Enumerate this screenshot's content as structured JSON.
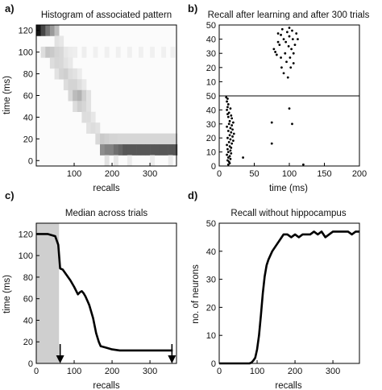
{
  "chart_data": [
    {
      "panel": "a)",
      "type": "heatmap",
      "title": "Histogram of associated pattern",
      "xlabel": "recalls",
      "ylabel": "time (ms)",
      "xlim": [
        0,
        370
      ],
      "ylim": [
        -5,
        125
      ],
      "xticks": [
        100,
        200,
        300
      ],
      "yticks": [
        0,
        20,
        40,
        60,
        80,
        100,
        120
      ],
      "bin_width_x": 12,
      "bin_height_y": 10,
      "cells": [
        [
          0,
          120,
          0.95
        ],
        [
          12,
          120,
          0.75
        ],
        [
          24,
          120,
          0.55
        ],
        [
          36,
          120,
          0.4
        ],
        [
          48,
          120,
          0.25
        ],
        [
          48,
          110,
          0.1
        ],
        [
          60,
          110,
          0.08
        ],
        [
          12,
          100,
          0.12
        ],
        [
          24,
          100,
          0.22
        ],
        [
          36,
          100,
          0.2
        ],
        [
          48,
          100,
          0.16
        ],
        [
          60,
          100,
          0.14
        ],
        [
          72,
          100,
          0.08
        ],
        [
          84,
          100,
          0.06
        ],
        [
          96,
          100,
          0.05
        ],
        [
          120,
          100,
          0.05
        ],
        [
          150,
          100,
          0.04
        ],
        [
          180,
          100,
          0.04
        ],
        [
          210,
          100,
          0.04
        ],
        [
          240,
          100,
          0.04
        ],
        [
          270,
          100,
          0.04
        ],
        [
          300,
          100,
          0.04
        ],
        [
          330,
          100,
          0.04
        ],
        [
          354,
          100,
          0.04
        ],
        [
          36,
          90,
          0.12
        ],
        [
          48,
          90,
          0.15
        ],
        [
          60,
          90,
          0.14
        ],
        [
          72,
          90,
          0.1
        ],
        [
          84,
          90,
          0.07
        ],
        [
          48,
          80,
          0.1
        ],
        [
          60,
          80,
          0.16
        ],
        [
          72,
          80,
          0.18
        ],
        [
          84,
          80,
          0.12
        ],
        [
          96,
          80,
          0.1
        ],
        [
          108,
          80,
          0.06
        ],
        [
          72,
          70,
          0.12
        ],
        [
          84,
          70,
          0.16
        ],
        [
          96,
          70,
          0.16
        ],
        [
          108,
          70,
          0.12
        ],
        [
          120,
          70,
          0.07
        ],
        [
          84,
          60,
          0.14
        ],
        [
          96,
          60,
          0.26
        ],
        [
          108,
          60,
          0.3
        ],
        [
          120,
          60,
          0.18
        ],
        [
          132,
          60,
          0.1
        ],
        [
          96,
          50,
          0.12
        ],
        [
          108,
          50,
          0.18
        ],
        [
          120,
          50,
          0.15
        ],
        [
          132,
          50,
          0.1
        ],
        [
          120,
          40,
          0.12
        ],
        [
          132,
          40,
          0.12
        ],
        [
          144,
          40,
          0.08
        ],
        [
          132,
          30,
          0.1
        ],
        [
          144,
          30,
          0.12
        ],
        [
          156,
          30,
          0.1
        ],
        [
          156,
          20,
          0.14
        ],
        [
          168,
          20,
          0.2
        ],
        [
          180,
          20,
          0.18
        ],
        [
          192,
          20,
          0.16
        ],
        [
          204,
          20,
          0.16
        ],
        [
          216,
          20,
          0.15
        ],
        [
          228,
          20,
          0.15
        ],
        [
          240,
          20,
          0.15
        ],
        [
          252,
          20,
          0.15
        ],
        [
          264,
          20,
          0.15
        ],
        [
          276,
          20,
          0.15
        ],
        [
          288,
          20,
          0.15
        ],
        [
          300,
          20,
          0.15
        ],
        [
          312,
          20,
          0.15
        ],
        [
          324,
          20,
          0.15
        ],
        [
          336,
          20,
          0.15
        ],
        [
          348,
          20,
          0.15
        ],
        [
          360,
          20,
          0.15
        ],
        [
          168,
          10,
          0.45
        ],
        [
          180,
          10,
          0.5
        ],
        [
          192,
          10,
          0.5
        ],
        [
          204,
          10,
          0.58
        ],
        [
          216,
          10,
          0.62
        ],
        [
          228,
          10,
          0.68
        ],
        [
          240,
          10,
          0.68
        ],
        [
          252,
          10,
          0.68
        ],
        [
          264,
          10,
          0.68
        ],
        [
          276,
          10,
          0.68
        ],
        [
          288,
          10,
          0.68
        ],
        [
          300,
          10,
          0.68
        ],
        [
          312,
          10,
          0.68
        ],
        [
          324,
          10,
          0.68
        ],
        [
          336,
          10,
          0.68
        ],
        [
          348,
          10,
          0.68
        ],
        [
          360,
          10,
          0.68
        ],
        [
          180,
          0,
          0.1
        ],
        [
          204,
          0,
          0.08
        ],
        [
          240,
          0,
          0.06
        ],
        [
          300,
          0,
          0.06
        ],
        [
          348,
          0,
          0.06
        ]
      ]
    },
    {
      "panel": "b)",
      "type": "scatter",
      "title": "Recall after learning and after 300 trials",
      "xlabel": "time (ms)",
      "ylabel": "",
      "xlim": [
        0,
        200
      ],
      "xticks": [
        0,
        50,
        100,
        150,
        200
      ],
      "subplots": [
        {
          "name": "after learning",
          "ylim": [
            0,
            50
          ],
          "yticks": [
            10,
            20,
            30,
            40,
            50
          ],
          "points": [
            [
              78,
              33
            ],
            [
              80,
              31
            ],
            [
              82,
              29
            ],
            [
              84,
              38
            ],
            [
              84,
              44
            ],
            [
              86,
              36
            ],
            [
              88,
              43
            ],
            [
              88,
              27
            ],
            [
              89,
              20
            ],
            [
              90,
              47
            ],
            [
              92,
              16
            ],
            [
              92,
              40
            ],
            [
              94,
              30
            ],
            [
              95,
              38
            ],
            [
              96,
              24
            ],
            [
              97,
              45
            ],
            [
              98,
              13
            ],
            [
              99,
              35
            ],
            [
              100,
              42
            ],
            [
              100,
              48
            ],
            [
              101,
              27
            ],
            [
              102,
              20
            ],
            [
              103,
              33
            ],
            [
              104,
              46
            ],
            [
              105,
              40
            ],
            [
              106,
              30
            ],
            [
              106,
              23
            ],
            [
              108,
              36
            ],
            [
              110,
              44
            ],
            [
              112,
              40
            ]
          ]
        },
        {
          "name": "after 300 trials",
          "ylim": [
            0,
            50
          ],
          "yticks": [
            0,
            10,
            20,
            30,
            40,
            50
          ],
          "points": [
            [
              10,
              49
            ],
            [
              12,
              48
            ],
            [
              11,
              46
            ],
            [
              13,
              44
            ],
            [
              12,
              42
            ],
            [
              16,
              41
            ],
            [
              11,
              40
            ],
            [
              14,
              38
            ],
            [
              12,
              37
            ],
            [
              17,
              36
            ],
            [
              13,
              35
            ],
            [
              18,
              34
            ],
            [
              15,
              32
            ],
            [
              20,
              31
            ],
            [
              14,
              30
            ],
            [
              18,
              29
            ],
            [
              11,
              28
            ],
            [
              16,
              27
            ],
            [
              19,
              26
            ],
            [
              13,
              25
            ],
            [
              17,
              24
            ],
            [
              21,
              23
            ],
            [
              15,
              22
            ],
            [
              19,
              21
            ],
            [
              12,
              20
            ],
            [
              16,
              19
            ],
            [
              20,
              18
            ],
            [
              14,
              17
            ],
            [
              18,
              16
            ],
            [
              11,
              15
            ],
            [
              15,
              14
            ],
            [
              17,
              13
            ],
            [
              12,
              12
            ],
            [
              16,
              11
            ],
            [
              13,
              10
            ],
            [
              17,
              9
            ],
            [
              11,
              8
            ],
            [
              15,
              7
            ],
            [
              13,
              6
            ],
            [
              16,
              5
            ],
            [
              12,
              4
            ],
            [
              14,
              3
            ],
            [
              15,
              2
            ],
            [
              34,
              6
            ],
            [
              13,
              1
            ],
            [
              100,
              41
            ],
            [
              75,
              31
            ],
            [
              104,
              30
            ],
            [
              75,
              16
            ],
            [
              120,
              1
            ]
          ]
        }
      ]
    },
    {
      "panel": "c)",
      "type": "line",
      "title": "Median across trials",
      "xlabel": "recalls",
      "ylabel": "time (ms)",
      "xlim": [
        0,
        370
      ],
      "ylim": [
        0,
        130
      ],
      "xticks": [
        0,
        100,
        200,
        300
      ],
      "yticks": [
        0,
        20,
        40,
        60,
        80,
        100,
        120
      ],
      "shaded_x_range": [
        0,
        60
      ],
      "arrows_at_x": [
        63,
        358
      ],
      "x": [
        0,
        10,
        20,
        30,
        40,
        50,
        58,
        63,
        70,
        80,
        90,
        100,
        110,
        115,
        120,
        125,
        130,
        135,
        140,
        150,
        158,
        165,
        170,
        180,
        190,
        200,
        220,
        250,
        300,
        330,
        350,
        360
      ],
      "y": [
        120,
        120,
        120,
        120,
        119,
        118,
        110,
        88,
        87,
        82,
        77,
        71,
        64,
        66,
        67,
        65,
        62,
        58,
        54,
        42,
        28,
        20,
        16,
        15,
        14,
        13,
        12,
        12,
        12,
        12,
        12,
        12
      ]
    },
    {
      "panel": "d)",
      "type": "line",
      "title": "Recall without hippocampus",
      "xlabel": "recalls",
      "ylabel": "no. of neurons",
      "xlim": [
        0,
        370
      ],
      "ylim": [
        0,
        50
      ],
      "xticks": [
        0,
        100,
        200,
        300
      ],
      "yticks": [
        0,
        10,
        20,
        30,
        40,
        50
      ],
      "x": [
        0,
        50,
        80,
        85,
        90,
        95,
        100,
        105,
        110,
        115,
        120,
        125,
        130,
        140,
        150,
        160,
        170,
        180,
        190,
        200,
        210,
        220,
        230,
        240,
        250,
        260,
        270,
        280,
        290,
        300,
        320,
        340,
        350,
        360,
        370
      ],
      "y": [
        0,
        0,
        0,
        0.3,
        1,
        2,
        5,
        10,
        17,
        25,
        31,
        35,
        37,
        40,
        42,
        44,
        46,
        46,
        45,
        46,
        45,
        46,
        46,
        46,
        47,
        46,
        47,
        45,
        46,
        47,
        47,
        47,
        46,
        47,
        47
      ]
    }
  ]
}
